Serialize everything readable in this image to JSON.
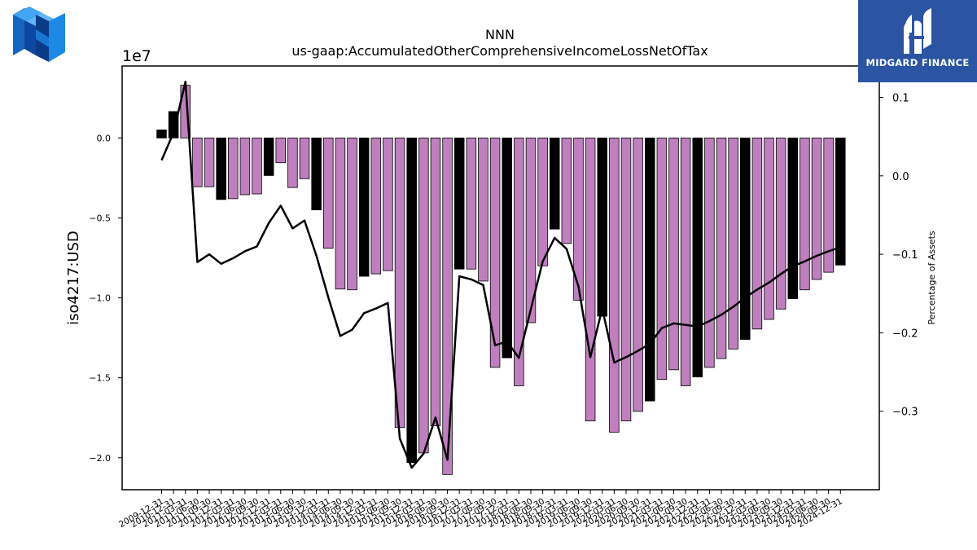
{
  "colors": {
    "highlight": "#000000",
    "normal": "#bf7fbf",
    "line": "#000000",
    "brand_bg": "#2b55a3"
  },
  "logos": {
    "left": "nnn-cube-logo",
    "right": "midgard-finance-logo"
  },
  "brand": {
    "name": "MIDGARD FINANCE"
  },
  "chart_data": {
    "type": "bar",
    "title": "NNN",
    "subtitle": "us-gaap:AccumulatedOtherComprehensiveIncomeLossNetOfTax",
    "ylabel": "iso4217:USD",
    "ylabel2": "Percentage of Assets",
    "offset_label": "1e7",
    "ylim": [
      -22000000,
      4500000
    ],
    "y2lim": [
      -0.4,
      0.14
    ],
    "yticks": [
      {
        "value": 0,
        "label": "0.0"
      },
      {
        "value": -5000000,
        "label": "−0.5"
      },
      {
        "value": -10000000,
        "label": "−1.0"
      },
      {
        "value": -15000000,
        "label": "−1.5"
      },
      {
        "value": -20000000,
        "label": "−2.0"
      }
    ],
    "y2ticks": [
      {
        "value": 0.1,
        "label": "0.1"
      },
      {
        "value": 0.0,
        "label": "0.0"
      },
      {
        "value": -0.1,
        "label": "−0.1"
      },
      {
        "value": -0.2,
        "label": "−0.2"
      },
      {
        "value": -0.3,
        "label": "−0.3"
      }
    ],
    "categories": [
      "2009-12-31",
      "2010-12-31",
      "2011-03-31",
      "2011-06-30",
      "2011-09-30",
      "2011-12-31",
      "2012-03-31",
      "2012-06-30",
      "2012-09-30",
      "2012-12-31",
      "2013-03-31",
      "2013-06-30",
      "2013-09-30",
      "2013-12-31",
      "2014-03-31",
      "2014-06-30",
      "2014-09-30",
      "2014-12-31",
      "2015-03-31",
      "2015-06-30",
      "2015-09-30",
      "2015-12-31",
      "2016-03-31",
      "2016-06-30",
      "2016-09-30",
      "2016-12-31",
      "2017-03-31",
      "2017-06-30",
      "2017-09-30",
      "2017-12-31",
      "2018-03-31",
      "2018-06-30",
      "2018-09-30",
      "2018-12-31",
      "2019-03-31",
      "2019-06-30",
      "2019-09-30",
      "2019-12-31",
      "2020-03-31",
      "2020-06-30",
      "2020-09-30",
      "2020-12-31",
      "2021-03-31",
      "2021-06-30",
      "2021-09-30",
      "2021-12-31",
      "2022-03-31",
      "2022-06-30",
      "2022-09-30",
      "2022-12-31",
      "2023-03-31",
      "2023-06-30",
      "2023-09-30",
      "2023-12-31",
      "2024-03-31",
      "2024-06-30",
      "2024-09-30",
      "2024-12-31"
    ],
    "x_labels": [
      "2009-12-31",
      "2010-12-31",
      "2011-03-31",
      "2011-06-30",
      "2011-09-30",
      "2011-12-31",
      "2012-03-31",
      "2012-06-30",
      "2012-09-30",
      "2012-12-31",
      "2013-03-31",
      "2013-06-30",
      "2013-09-30",
      "2013-12-31",
      "2014-03-31",
      "2014-06-30",
      "2014-09-30",
      "2014-12-31",
      "2015-03-31",
      "2015-06-30",
      "2015-09-30",
      "2015-12-31",
      "2016-03-31",
      "2016-06-30",
      "2016-09-30",
      "2016-12-31",
      "2017-03-31",
      "2017-06-30",
      "2017-09-30",
      "2017-12-31",
      "2018-03-31",
      "2018-06-30",
      "2018-09-30",
      "2018-12-31",
      "2019-03-31",
      "2019-06-30",
      "2019-09-30",
      "2019-12-31",
      "2020-03-31",
      "2020-06-30",
      "2020-09-30",
      "2020-12-31",
      "2021-03-31",
      "2021-06-30",
      "2021-09-30",
      "2021-12-31",
      "2022-03-31",
      "2022-06-30",
      "2022-09-30",
      "2022-12-31",
      "2023-03-31",
      "2023-06-30",
      "2023-09-30",
      "2023-12-31",
      "2024-03-31",
      "2024-06-30",
      "2024-09-30",
      "2024-12-31"
    ],
    "series": [
      {
        "values": [
          500000,
          1650000,
          3300000,
          -3050000,
          -3050000,
          -3850000,
          -3800000,
          -3550000,
          -3500000,
          -2350000,
          -1550000,
          -3100000,
          -2550000,
          -4500000,
          -6900000,
          -9450000,
          -9500000,
          -8650000,
          -8500000,
          -8300000,
          -18100000,
          -20300000,
          -19700000,
          -18000000,
          -21050000,
          -8200000,
          -8200000,
          -8950000,
          -14350000,
          -13750000,
          -15500000,
          -11550000,
          -8000000,
          -5700000,
          -6600000,
          -10150000,
          -17700000,
          -11150000,
          -18400000,
          -17700000,
          -17100000,
          -16450000,
          -15100000,
          -14500000,
          -15500000,
          -14950000,
          -14350000,
          -13800000,
          -13200000,
          -12600000,
          -11950000,
          -11350000,
          -10700000,
          -10050000,
          -9500000,
          -8850000,
          -8400000,
          -7950000
        ],
        "highlight": [
          true,
          true,
          false,
          false,
          false,
          true,
          false,
          false,
          false,
          true,
          false,
          false,
          false,
          true,
          false,
          false,
          false,
          true,
          false,
          false,
          false,
          true,
          false,
          false,
          false,
          true,
          false,
          false,
          false,
          true,
          false,
          false,
          false,
          true,
          false,
          false,
          false,
          true,
          false,
          false,
          false,
          true,
          false,
          false,
          false,
          true,
          false,
          false,
          false,
          true,
          false,
          false,
          false,
          true,
          false,
          false,
          false,
          true
        ]
      },
      {
        "type": "line",
        "values": [
          0.02,
          0.055,
          0.12,
          -0.11,
          -0.1,
          -0.112,
          -0.105,
          -0.096,
          -0.09,
          -0.06,
          -0.038,
          -0.067,
          -0.057,
          -0.102,
          -0.155,
          -0.204,
          -0.196,
          -0.175,
          -0.169,
          -0.162,
          -0.335,
          -0.372,
          -0.354,
          -0.308,
          -0.362,
          -0.128,
          -0.132,
          -0.139,
          -0.216,
          -0.211,
          -0.232,
          -0.17,
          -0.109,
          -0.079,
          -0.093,
          -0.141,
          -0.231,
          -0.169,
          -0.238,
          -0.231,
          -0.223,
          -0.214,
          -0.194,
          -0.188,
          -0.19,
          -0.192,
          -0.185,
          -0.177,
          -0.167,
          -0.155,
          -0.145,
          -0.136,
          -0.125,
          -0.115,
          -0.109,
          -0.102,
          -0.096,
          -0.091
        ]
      }
    ]
  }
}
